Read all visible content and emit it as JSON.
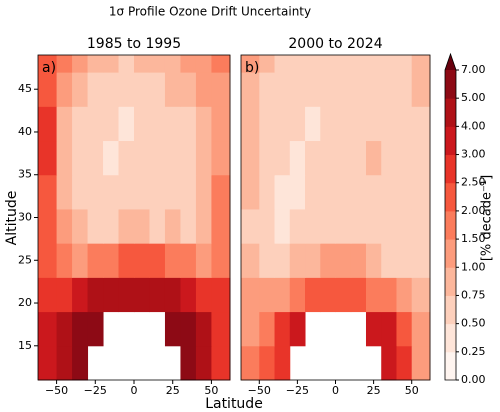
{
  "title": "1σ Profile Ozone Drift Uncertainty",
  "xlabel": "Latitude",
  "ylabel": "Altitude",
  "colorbar": {
    "label": "[% decade⁻¹]",
    "ticks": [
      {
        "value": 0,
        "label": "0.00"
      },
      {
        "value": 0.25,
        "label": "0.25"
      },
      {
        "value": 0.5,
        "label": "0.50"
      },
      {
        "value": 0.75,
        "label": "0.75"
      },
      {
        "value": 1,
        "label": "1.00"
      },
      {
        "value": 1.5,
        "label": "1.50"
      },
      {
        "value": 2,
        "label": "2.00"
      },
      {
        "value": 2.5,
        "label": "2.50"
      },
      {
        "value": 3,
        "label": "3.00"
      },
      {
        "value": 4,
        "label": "4.00"
      },
      {
        "value": 5,
        "label": "5.00"
      },
      {
        "value": 7,
        "label": "7.00"
      }
    ],
    "colors": [
      "#fff5f0",
      "#fee5d9",
      "#fdd0bc",
      "#fcb79c",
      "#fc9c7d",
      "#fb7c5c",
      "#f6583e",
      "#e83429",
      "#cb181d",
      "#af1117",
      "#8d0a15",
      "#67000d"
    ]
  },
  "chart_data": [
    {
      "type": "contour",
      "title": "1985 to 1995",
      "panel_label": "a)",
      "xlim": [
        -62,
        62
      ],
      "ylim": [
        11,
        49
      ],
      "xticks": [
        {
          "value": -50,
          "label": "−50"
        },
        {
          "value": -25,
          "label": "−25"
        },
        0,
        25,
        50
      ],
      "yticks": [
        15,
        20,
        25,
        30,
        35,
        40,
        45
      ],
      "x_bins": [
        -62,
        -50,
        -40,
        -30,
        -20,
        -10,
        0,
        10,
        20,
        30,
        40,
        50,
        62
      ],
      "y_bins": [
        11,
        15,
        19,
        23,
        27,
        31,
        35,
        39,
        43,
        47,
        49
      ],
      "values": [
        [
          3.5,
          4.5,
          5.2,
          null,
          null,
          null,
          null,
          null,
          null,
          5.5,
          4,
          2.5
        ],
        [
          3,
          4,
          5.5,
          6,
          null,
          null,
          null,
          null,
          6.5,
          5,
          4,
          2.5
        ],
        [
          2.5,
          2.5,
          3.5,
          4,
          4.5,
          4.5,
          4.5,
          4.5,
          4,
          3.5,
          2.5,
          2.5
        ],
        [
          2,
          1.5,
          1.2,
          1.5,
          1.8,
          2,
          2,
          2,
          1.8,
          1.5,
          1.2,
          1.5
        ],
        [
          2,
          1,
          0.8,
          0.6,
          0.7,
          0.8,
          0.8,
          0.7,
          0.8,
          0.7,
          0.9,
          1.5
        ],
        [
          2.2,
          0.8,
          0.6,
          0.5,
          0.6,
          0.7,
          0.6,
          0.5,
          0.6,
          0.7,
          0.9,
          1.5
        ],
        [
          2.5,
          0.9,
          0.6,
          0.5,
          0.4,
          0.5,
          0.6,
          0.5,
          0.6,
          0.7,
          0.8,
          1.2
        ],
        [
          2.5,
          0.9,
          0.7,
          0.6,
          0.5,
          0.4,
          0.5,
          0.6,
          0.7,
          0.7,
          0.9,
          1.2
        ],
        [
          2.2,
          1,
          0.8,
          0.7,
          0.7,
          0.6,
          0.6,
          0.7,
          0.8,
          0.9,
          1,
          1.3
        ],
        [
          2,
          1.5,
          1,
          0.8,
          0.8,
          0.7,
          0.8,
          0.8,
          0.9,
          1,
          1.2,
          1.5
        ]
      ]
    },
    {
      "type": "contour",
      "title": "2000 to 2024",
      "panel_label": "b)",
      "xlim": [
        -62,
        62
      ],
      "ylim": [
        11,
        49
      ],
      "xticks": [
        {
          "value": -50,
          "label": "−50"
        },
        {
          "value": -25,
          "label": "−25"
        },
        0,
        25,
        50
      ],
      "x_bins": [
        -62,
        -50,
        -40,
        -30,
        -20,
        -10,
        0,
        10,
        20,
        30,
        40,
        50,
        62
      ],
      "y_bins": [
        11,
        15,
        19,
        23,
        27,
        31,
        35,
        39,
        43,
        47,
        49
      ],
      "values": [
        [
          1.5,
          2,
          2.5,
          null,
          null,
          null,
          null,
          null,
          null,
          3.5,
          2.5,
          1.2
        ],
        [
          1.2,
          1.5,
          2.5,
          3,
          null,
          null,
          null,
          null,
          3,
          3,
          2,
          1
        ],
        [
          1,
          1,
          1.2,
          1.5,
          2,
          2,
          2,
          2,
          1.8,
          1.5,
          1,
          0.8
        ],
        [
          0.8,
          0.6,
          0.7,
          0.8,
          0.9,
          1.2,
          1.3,
          1,
          0.8,
          0.7,
          0.6,
          0.6
        ],
        [
          0.7,
          0.5,
          0.4,
          0.5,
          0.6,
          0.7,
          0.7,
          0.6,
          0.6,
          0.5,
          0.5,
          0.6
        ],
        [
          0.8,
          0.5,
          0.4,
          0.4,
          0.5,
          0.6,
          0.5,
          0.6,
          0.7,
          0.6,
          0.5,
          0.6
        ],
        [
          0.8,
          0.6,
          0.5,
          0.4,
          0.5,
          0.5,
          0.6,
          0.7,
          0.8,
          0.7,
          0.6,
          0.6
        ],
        [
          0.8,
          0.6,
          0.5,
          0.5,
          0.4,
          0.5,
          0.6,
          0.7,
          0.7,
          0.6,
          0.6,
          0.7
        ],
        [
          0.9,
          0.7,
          0.6,
          0.5,
          0.5,
          0.6,
          0.6,
          0.6,
          0.6,
          0.6,
          0.7,
          0.8
        ],
        [
          1,
          0.8,
          0.7,
          0.6,
          0.6,
          0.6,
          0.7,
          0.7,
          0.6,
          0.6,
          0.7,
          0.8
        ]
      ]
    }
  ]
}
